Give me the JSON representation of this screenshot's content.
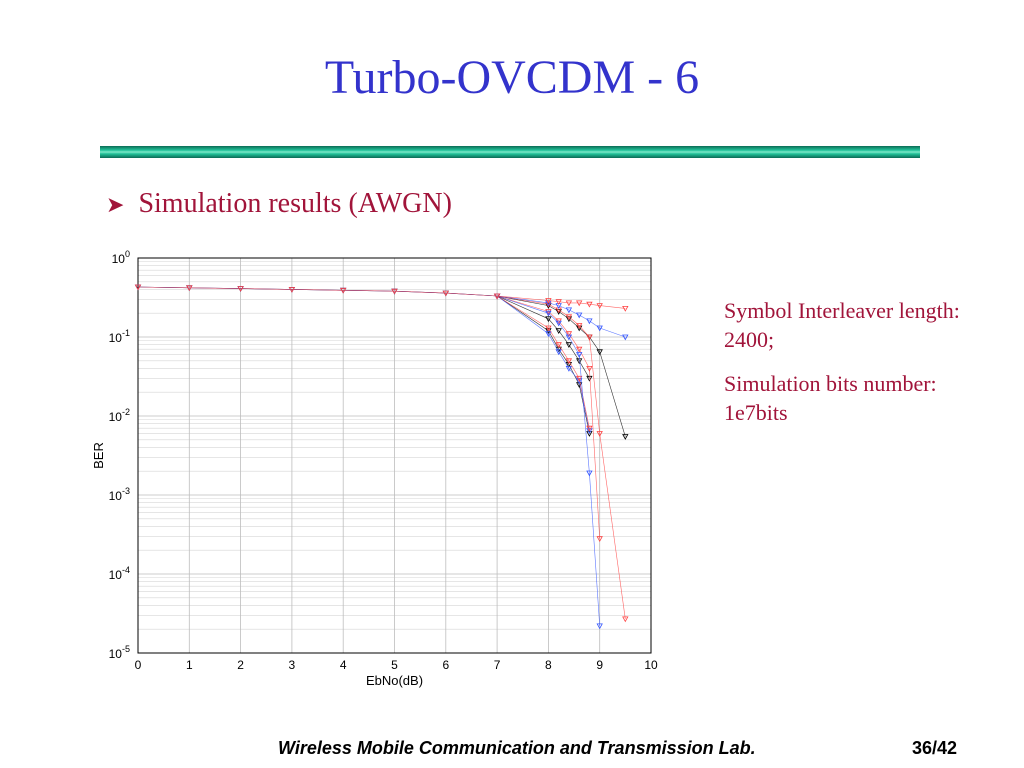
{
  "slide": {
    "title": "Turbo-OVCDM - 6",
    "bullet": "Simulation results (AWGN)",
    "notes": [
      "Symbol Interleaver length: 2400;",
      "Simulation bits number: 1e7bits"
    ],
    "footer": "Wireless Mobile Communication and Transmission Lab.",
    "page": "36/42"
  },
  "colors": {
    "title": "#3333cc",
    "text": "#a1143a",
    "rule": "#1faa85",
    "series_black": "#000000",
    "series_red": "#ff4040",
    "series_blue": "#3355ff"
  },
  "chart_data": {
    "type": "line",
    "title": "",
    "xlabel": "EbNo(dB)",
    "ylabel": "BER",
    "xlim": [
      0,
      10
    ],
    "ylim": [
      1e-05,
      1
    ],
    "yscale": "log",
    "grid": true,
    "x_ticks": [
      "0",
      "1",
      "2",
      "3",
      "4",
      "5",
      "6",
      "7",
      "8",
      "9",
      "10"
    ],
    "y_ticks": [
      {
        "base": "10",
        "exp": "0"
      },
      {
        "base": "10",
        "exp": "-1"
      },
      {
        "base": "10",
        "exp": "-2"
      },
      {
        "base": "10",
        "exp": "-3"
      },
      {
        "base": "10",
        "exp": "-4"
      },
      {
        "base": "10",
        "exp": "-5"
      }
    ],
    "series": [
      {
        "color": "black",
        "x": [
          0,
          1,
          2,
          3,
          4,
          5,
          6,
          7,
          8.0,
          8.2,
          8.4,
          8.6,
          8.8
        ],
        "y": [
          0.43,
          0.42,
          0.41,
          0.4,
          0.39,
          0.38,
          0.36,
          0.33,
          0.12,
          0.07,
          0.045,
          0.025,
          0.006
        ]
      },
      {
        "color": "blue",
        "x": [
          0,
          1,
          2,
          3,
          4,
          5,
          6,
          7,
          8.0,
          8.2,
          8.4,
          8.6,
          8.8
        ],
        "y": [
          0.43,
          0.42,
          0.41,
          0.4,
          0.39,
          0.38,
          0.36,
          0.33,
          0.11,
          0.065,
          0.04,
          0.028,
          0.0065
        ]
      },
      {
        "color": "red",
        "x": [
          0,
          1,
          2,
          3,
          4,
          5,
          6,
          7,
          8.0,
          8.2,
          8.4,
          8.6,
          8.8
        ],
        "y": [
          0.43,
          0.42,
          0.41,
          0.4,
          0.39,
          0.38,
          0.36,
          0.33,
          0.13,
          0.08,
          0.05,
          0.03,
          0.007
        ]
      },
      {
        "color": "black",
        "x": [
          7,
          8.0,
          8.2,
          8.4,
          8.6,
          8.8
        ],
        "y": [
          0.33,
          0.17,
          0.12,
          0.08,
          0.05,
          0.03
        ]
      },
      {
        "color": "red",
        "x": [
          7,
          8.0,
          8.2,
          8.4,
          8.6,
          8.8,
          9.0
        ],
        "y": [
          0.33,
          0.21,
          0.16,
          0.11,
          0.07,
          0.04,
          0.00028
        ]
      },
      {
        "color": "blue",
        "x": [
          7,
          8.0,
          8.2,
          8.4,
          8.6,
          8.8,
          9.0
        ],
        "y": [
          0.33,
          0.2,
          0.15,
          0.1,
          0.06,
          0.0019,
          2.2e-05
        ]
      },
      {
        "color": "black",
        "x": [
          7,
          8.0,
          8.2,
          8.4,
          8.6,
          8.8,
          9.0,
          9.5
        ],
        "y": [
          0.33,
          0.25,
          0.21,
          0.17,
          0.13,
          0.1,
          0.065,
          0.0055
        ]
      },
      {
        "color": "red",
        "x": [
          7,
          8.0,
          8.2,
          8.4,
          8.6,
          8.8,
          9.0,
          9.5
        ],
        "y": [
          0.33,
          0.26,
          0.22,
          0.18,
          0.14,
          0.1,
          0.006,
          2.7e-05
        ]
      },
      {
        "color": "blue",
        "x": [
          7,
          8.0,
          8.2,
          8.4,
          8.6,
          8.8,
          9.0,
          9.5
        ],
        "y": [
          0.33,
          0.27,
          0.25,
          0.22,
          0.19,
          0.16,
          0.13,
          0.1
        ]
      },
      {
        "color": "red",
        "x": [
          7,
          8.0,
          8.2,
          8.4,
          8.6,
          8.8,
          9.0,
          9.5
        ],
        "y": [
          0.33,
          0.29,
          0.28,
          0.27,
          0.27,
          0.26,
          0.25,
          0.23
        ]
      }
    ]
  }
}
